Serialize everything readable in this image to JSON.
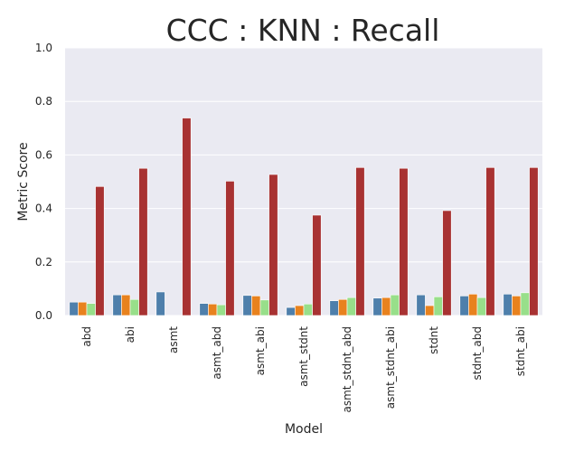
{
  "chart_data": {
    "type": "bar",
    "title": "CCC : KNN : Recall",
    "xlabel": "Model",
    "ylabel": "Metric Score",
    "ylim": [
      0,
      1.0
    ],
    "yticks": [
      "0.0",
      "0.2",
      "0.4",
      "0.6",
      "0.8",
      "1.0"
    ],
    "grid": true,
    "legend": "none",
    "categories": [
      "abd",
      "abi",
      "asmt",
      "asmt_abd",
      "asmt_abi",
      "asmt_stdnt",
      "asmt_stdnt_abd",
      "asmt_stdnt_abi",
      "stdnt",
      "stdnt_abd",
      "stdnt_abi"
    ],
    "series": [
      {
        "color": "#4e7fab",
        "values": [
          0.05,
          0.077,
          0.088,
          0.045,
          0.075,
          0.03,
          0.055,
          0.065,
          0.077,
          0.073,
          0.08
        ]
      },
      {
        "color": "#e8821e",
        "values": [
          0.05,
          0.077,
          0.0,
          0.043,
          0.073,
          0.037,
          0.06,
          0.067,
          0.037,
          0.08,
          0.073
        ]
      },
      {
        "color": "#98df8a",
        "values": [
          0.045,
          0.06,
          0.0,
          0.04,
          0.058,
          0.043,
          0.067,
          0.077,
          0.07,
          0.067,
          0.085
        ]
      },
      {
        "color": "#a83232",
        "values": [
          0.482,
          0.55,
          0.738,
          0.502,
          0.527,
          0.375,
          0.553,
          0.55,
          0.392,
          0.553,
          0.553
        ]
      }
    ]
  }
}
